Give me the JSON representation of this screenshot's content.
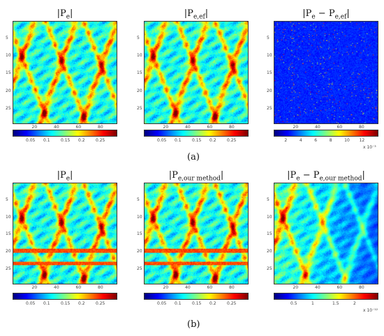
{
  "sublabels": {
    "a": "(a)",
    "b": "(b)"
  },
  "panels": [
    {
      "id": "a1",
      "title": "|P",
      "sub": "e",
      "title_end": "|",
      "hat": false,
      "yticks": [
        "5",
        "10",
        "15",
        "20",
        "25"
      ],
      "xticks": [
        "20",
        "40",
        "60",
        "80"
      ],
      "cbar_ticks": [
        "0.05",
        "0.1",
        "0.15",
        "0.2",
        "0.25"
      ],
      "cbar_exp": "",
      "map": "jet",
      "variant": "base"
    },
    {
      "id": "a2",
      "title": "|P",
      "sub": "e,ef",
      "title_end": "|",
      "hat": true,
      "yticks": [
        "5",
        "10",
        "15",
        "20",
        "25"
      ],
      "xticks": [
        "20",
        "40",
        "60",
        "80"
      ],
      "cbar_ticks": [
        "0.05",
        "0.1",
        "0.15",
        "0.2",
        "0.25"
      ],
      "cbar_exp": "",
      "map": "jet",
      "variant": "base"
    },
    {
      "id": "a3",
      "title": "|P",
      "sub": "e",
      "title_mid": " − P",
      "sub2": "e,ef",
      "title_end": "|",
      "hat": true,
      "yticks": [
        "5",
        "10",
        "15",
        "20",
        "25"
      ],
      "xticks": [
        "20",
        "40",
        "60",
        "80"
      ],
      "cbar_ticks": [
        "2",
        "4",
        "6",
        "8",
        "10",
        "12"
      ],
      "cbar_exp": "x 10⁻³",
      "map": "jet",
      "variant": "sparse"
    },
    {
      "id": "b1",
      "title": "|P",
      "sub": "e",
      "title_end": "|",
      "hat": false,
      "yticks": [
        "5",
        "10",
        "15",
        "20",
        "25"
      ],
      "xticks": [
        "20",
        "40",
        "60",
        "80"
      ],
      "cbar_ticks": [
        "0.05",
        "0.1",
        "0.15",
        "0.2",
        "0.25"
      ],
      "cbar_exp": "",
      "map": "jet",
      "variant": "striped"
    },
    {
      "id": "b2",
      "title": "|P",
      "sub": "e,our method",
      "title_end": "|",
      "hat": true,
      "yticks": [
        "5",
        "10",
        "15",
        "20",
        "25"
      ],
      "xticks": [
        "20",
        "40",
        "60",
        "80"
      ],
      "cbar_ticks": [
        "0.05",
        "0.1",
        "0.15",
        "0.2",
        "0.25"
      ],
      "cbar_exp": "",
      "map": "jet",
      "variant": "striped"
    },
    {
      "id": "b3",
      "title": "|P",
      "sub": "e",
      "title_mid": " − P",
      "sub2": "e,our method",
      "title_end": "|",
      "hat": true,
      "yticks": [
        "5",
        "10",
        "15",
        "20",
        "25"
      ],
      "xticks": [
        "20",
        "40",
        "60",
        "80"
      ],
      "cbar_ticks": [
        "0.5",
        "1",
        "1.5",
        "2"
      ],
      "cbar_exp": "x 10⁻¹²",
      "map": "jet",
      "variant": "fade"
    }
  ]
}
